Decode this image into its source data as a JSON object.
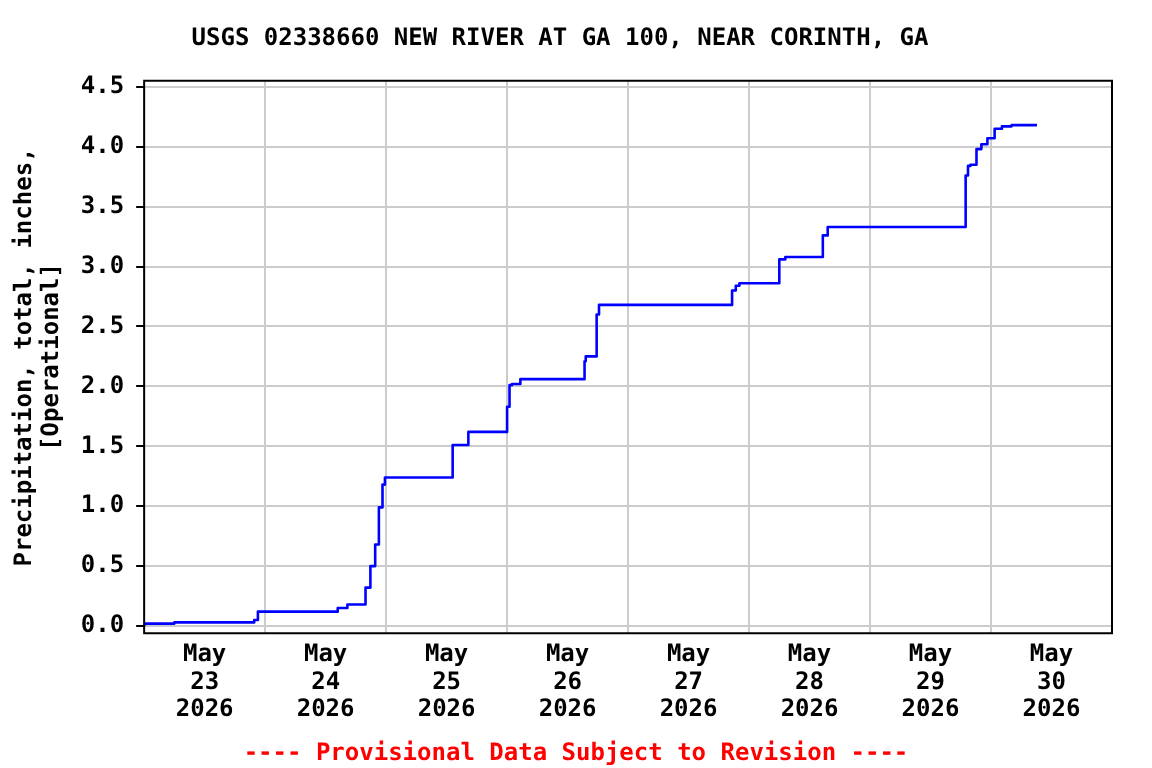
{
  "chart_data": {
    "type": "step",
    "title": "USGS 02338660 NEW RIVER AT GA 100, NEAR CORINTH, GA",
    "ylabel": "Precipitation, total, inches,\n[Operational]",
    "annotations": [
      "---- Provisional Data Subject to Revision ----"
    ],
    "x": [
      "2026-05-23T00:00",
      "2026-05-23T06:00",
      "2026-05-23T21:50",
      "2026-05-23T22:34",
      "2026-05-24T14:24",
      "2026-05-24T16:19",
      "2026-05-24T19:55",
      "2026-05-24T20:53",
      "2026-05-24T21:50",
      "2026-05-24T22:34",
      "2026-05-24T23:17",
      "2026-05-24T23:46",
      "2026-05-25T00:14",
      "2026-05-25T13:12",
      "2026-05-25T13:26",
      "2026-05-25T16:19",
      "2026-05-25T16:48",
      "2026-05-26T00:00",
      "2026-05-26T00:29",
      "2026-05-26T00:58",
      "2026-05-26T02:38",
      "2026-05-26T04:19",
      "2026-05-26T15:22",
      "2026-05-26T15:36",
      "2026-05-26T17:46",
      "2026-05-26T18:14",
      "2026-05-26T18:43",
      "2026-05-27T20:38",
      "2026-05-27T21:22",
      "2026-05-27T22:05",
      "2026-05-28T06:00",
      "2026-05-28T07:12",
      "2026-05-28T07:55",
      "2026-05-28T14:38",
      "2026-05-28T15:36",
      "2026-05-28T16:19",
      "2026-05-29T18:58",
      "2026-05-29T19:26",
      "2026-05-29T19:55",
      "2026-05-29T21:07",
      "2026-05-29T22:05",
      "2026-05-29T23:17",
      "2026-05-30T00:43",
      "2026-05-30T02:10",
      "2026-05-30T04:05",
      "2026-05-30T06:14",
      "2026-05-30T09:07"
    ],
    "series": [
      {
        "color": "#0000ff",
        "values": [
          0.0,
          0.02,
          0.03,
          0.05,
          0.12,
          0.15,
          0.18,
          0.32,
          0.5,
          0.68,
          0.99,
          1.18,
          1.24,
          1.24,
          1.51,
          1.51,
          1.62,
          1.62,
          1.83,
          2.01,
          2.02,
          2.06,
          2.06,
          2.21,
          2.25,
          2.6,
          2.68,
          2.68,
          2.8,
          2.84,
          2.86,
          3.06,
          3.08,
          3.08,
          3.26,
          3.33,
          3.33,
          3.76,
          3.84,
          3.85,
          3.98,
          4.02,
          4.07,
          4.15,
          4.17,
          4.18,
          4.18
        ]
      }
    ],
    "xlim": [
      "2026-05-23T00:00",
      "2026-05-31T00:00"
    ],
    "xticks": [
      {
        "value": "2026-05-23T12:00",
        "label": "May 23 2026"
      },
      {
        "value": "2026-05-24T00:00",
        "label": null
      },
      {
        "value": "2026-05-24T12:00",
        "label": "May 24 2026"
      },
      {
        "value": "2026-05-25T00:00",
        "label": null
      },
      {
        "value": "2026-05-25T12:00",
        "label": "May 25 2026"
      },
      {
        "value": "2026-05-26T00:00",
        "label": null
      },
      {
        "value": "2026-05-26T12:00",
        "label": "May 26 2026"
      },
      {
        "value": "2026-05-27T00:00",
        "label": null
      },
      {
        "value": "2026-05-27T12:00",
        "label": "May 27 2026"
      },
      {
        "value": "2026-05-28T00:00",
        "label": null
      },
      {
        "value": "2026-05-28T12:00",
        "label": "May 28 2026"
      },
      {
        "value": "2026-05-29T00:00",
        "label": null
      },
      {
        "value": "2026-05-29T12:00",
        "label": "May 29 2026"
      },
      {
        "value": "2026-05-30T00:00",
        "label": null
      },
      {
        "value": "2026-05-30T12:00",
        "label": "May 30 2026"
      }
    ],
    "ylim": [
      -0.06,
      4.55
    ],
    "yticks": [
      {
        "value": 0,
        "label": "0.0"
      },
      {
        "value": 0.5,
        "label": "0.5"
      },
      {
        "value": 1,
        "label": "1.0"
      },
      {
        "value": 1.5,
        "label": "1.5"
      },
      {
        "value": 2,
        "label": "2.0"
      },
      {
        "value": 2.5,
        "label": "2.5"
      },
      {
        "value": 3,
        "label": "3.0"
      },
      {
        "value": 3.5,
        "label": "3.5"
      },
      {
        "value": 4,
        "label": "4.0"
      },
      {
        "value": 4.5,
        "label": "4.5"
      }
    ],
    "grid": true,
    "legend": false,
    "marker": "none",
    "line_style": "solid"
  }
}
